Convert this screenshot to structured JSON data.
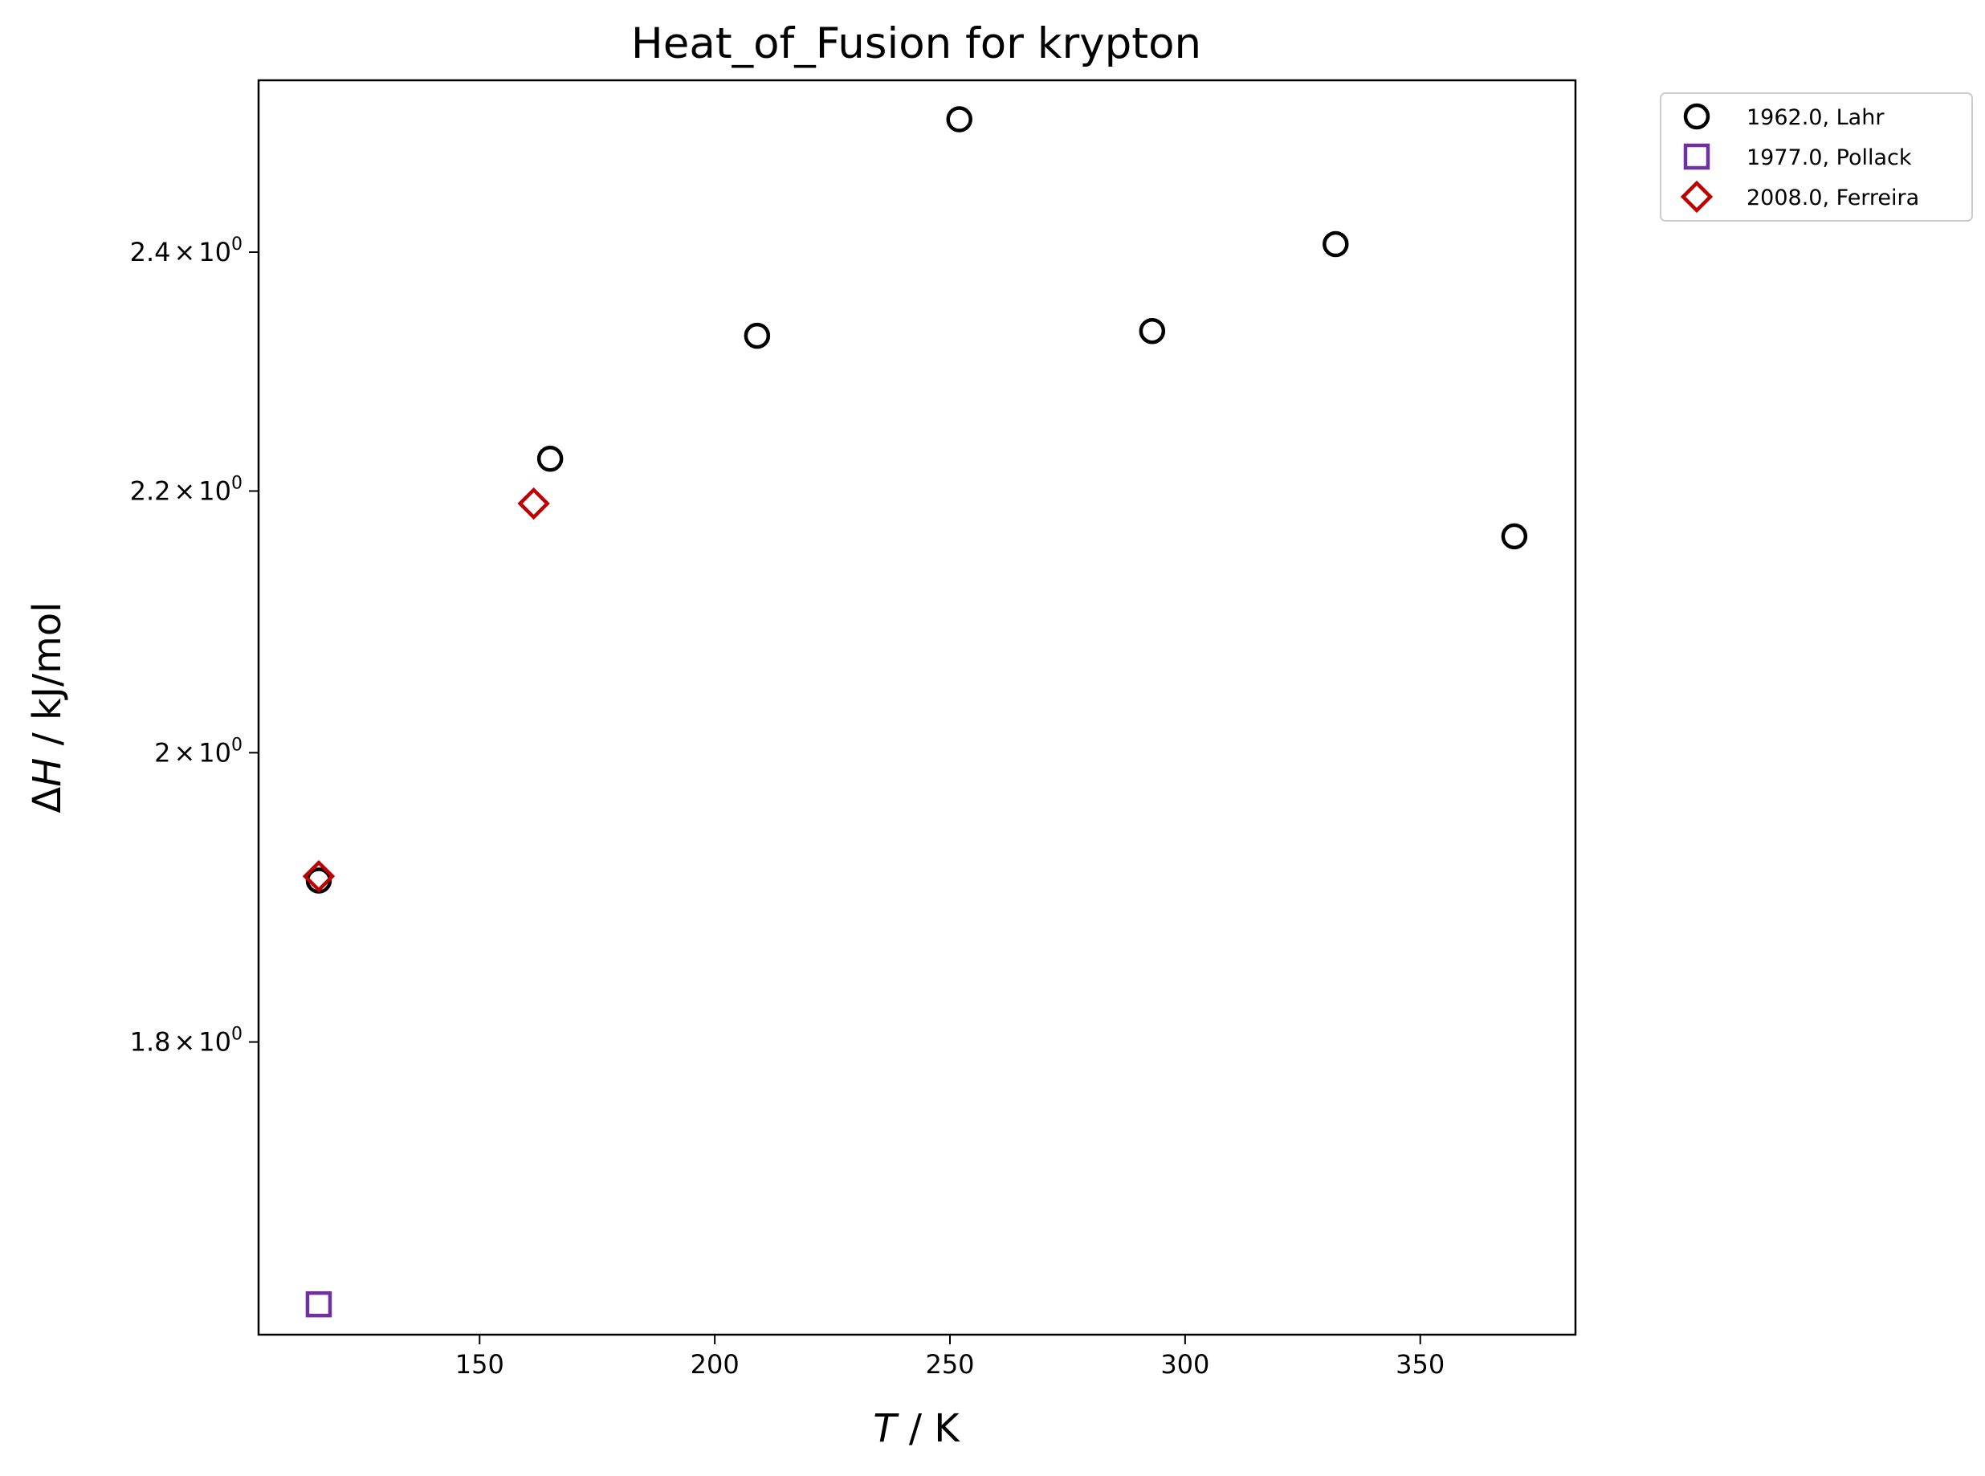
{
  "chart_data": {
    "type": "scatter",
    "title": "Heat_of_Fusion for krypton",
    "xlabel": {
      "symbol": "T",
      "rest": " / K"
    },
    "ylabel": {
      "prefix": "Δ",
      "symbol": "H",
      "rest": " / kJ/mol"
    },
    "y_scale": "log",
    "xlim": [
      103,
      383
    ],
    "ylim": [
      1.618,
      2.555
    ],
    "x_ticks": [
      {
        "value": 150,
        "label": "150"
      },
      {
        "value": 200,
        "label": "200"
      },
      {
        "value": 250,
        "label": "250"
      },
      {
        "value": 300,
        "label": "300"
      },
      {
        "value": 350,
        "label": "350"
      }
    ],
    "y_ticks": [
      {
        "value": 1.8,
        "mantissa": "1.8",
        "times": "×",
        "base": "10",
        "exponent": "0"
      },
      {
        "value": 2.0,
        "mantissa": "2",
        "times": "×",
        "base": "10",
        "exponent": "0"
      },
      {
        "value": 2.2,
        "mantissa": "2.2",
        "times": "×",
        "base": "10",
        "exponent": "0"
      },
      {
        "value": 2.4,
        "mantissa": "2.4",
        "times": "×",
        "base": "10",
        "exponent": "0"
      }
    ],
    "grid": false,
    "legend_position": "outside-top-right",
    "series": [
      {
        "name": "1962.0, Lahr",
        "marker": "circle",
        "color": "#000000",
        "points": [
          {
            "x": 115.8,
            "y": 1.909
          },
          {
            "x": 165,
            "y": 2.226
          },
          {
            "x": 209,
            "y": 2.328
          },
          {
            "x": 252,
            "y": 2.519
          },
          {
            "x": 293,
            "y": 2.332
          },
          {
            "x": 332,
            "y": 2.407
          },
          {
            "x": 370,
            "y": 2.164
          }
        ]
      },
      {
        "name": "1977.0, Pollack",
        "marker": "square",
        "color": "#7030a0",
        "points": [
          {
            "x": 115.8,
            "y": 1.636
          }
        ]
      },
      {
        "name": "2008.0, Ferreira",
        "marker": "diamond",
        "color": "#c00000",
        "points": [
          {
            "x": 115.8,
            "y": 1.912
          },
          {
            "x": 161.5,
            "y": 2.19
          }
        ]
      }
    ]
  }
}
